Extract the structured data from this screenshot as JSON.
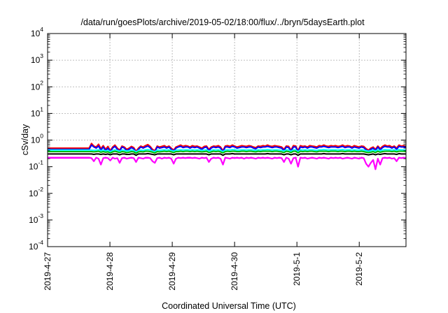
{
  "chart_data": {
    "type": "line",
    "title": "/data/run/goesPlots/archive/2019-05-02/18:00/flux/../bryn/5daysEarth.plot",
    "xlabel": "Coordinated Universal Time (UTC)",
    "ylabel": "cSv/day",
    "yscale": "log",
    "ylim": [
      0.0001,
      10000
    ],
    "xlim": [
      "2019-04-27 00:00",
      "2019-05-02 18:00"
    ],
    "grid": true,
    "legend": "none",
    "x_ticks": [
      "2019-4-27",
      "2019-4-28",
      "2019-4-29",
      "2019-4-30",
      "2019-5-1",
      "2019-5-2"
    ],
    "y_ticks": [
      {
        "base": "10",
        "exp": "-4"
      },
      {
        "base": "10",
        "exp": "-3"
      },
      {
        "base": "10",
        "exp": "-2"
      },
      {
        "base": "10",
        "exp": "-1"
      },
      {
        "base": "10",
        "exp": "0"
      },
      {
        "base": "10",
        "exp": "1"
      },
      {
        "base": "10",
        "exp": "2"
      },
      {
        "base": "10",
        "exp": "3"
      },
      {
        "base": "10",
        "exp": "4"
      }
    ],
    "data_start": "2019-04-27 16:00",
    "flat_value_before_start": true,
    "series": [
      {
        "color": "#ff00ff",
        "fill_to_zero": true,
        "values": [
          0.22,
          0.21,
          0.16,
          0.22,
          0.2,
          0.12,
          0.21,
          0.22,
          0.21,
          0.17,
          0.22,
          0.2,
          0.21,
          0.14,
          0.21,
          0.22,
          0.2,
          0.21,
          0.22,
          0.21,
          0.15,
          0.22,
          0.21,
          0.2,
          0.22,
          0.22,
          0.21,
          0.16,
          0.14,
          0.21,
          0.22,
          0.2,
          0.22,
          0.21,
          0.22,
          0.2,
          0.13,
          0.2,
          0.22,
          0.21,
          0.22,
          0.21,
          0.22,
          0.22,
          0.21,
          0.22,
          0.21,
          0.2,
          0.22,
          0.21,
          0.22,
          0.15,
          0.2,
          0.22,
          0.21,
          0.22,
          0.2,
          0.12,
          0.22,
          0.21,
          0.2,
          0.22,
          0.21,
          0.22,
          0.21,
          0.22,
          0.2,
          0.22,
          0.21,
          0.22,
          0.21,
          0.2,
          0.22,
          0.21,
          0.22,
          0.21,
          0.22,
          0.21,
          0.2,
          0.22,
          0.21,
          0.22,
          0.21,
          0.15,
          0.22,
          0.2,
          0.13,
          0.21,
          0.22,
          0.1,
          0.22,
          0.21,
          0.22,
          0.2,
          0.21,
          0.22,
          0.21,
          0.2,
          0.22,
          0.21,
          0.22,
          0.21,
          0.2,
          0.22,
          0.21,
          0.22,
          0.21,
          0.22,
          0.2,
          0.21,
          0.22,
          0.21,
          0.2,
          0.22,
          0.21,
          0.2,
          0.22,
          0.21,
          0.13,
          0.1,
          0.14,
          0.18,
          0.08,
          0.2,
          0.12,
          0.21,
          0.22,
          0.21,
          0.22,
          0.2,
          0.21,
          0.16,
          0.22,
          0.21,
          0.22,
          0.21
        ]
      },
      {
        "color": "#ff0000",
        "values": [
          0.5,
          0.75,
          0.6,
          0.55,
          0.7,
          0.48,
          0.62,
          0.45,
          0.58,
          0.4,
          0.55,
          0.65,
          0.5,
          0.42,
          0.6,
          0.55,
          0.45,
          0.5,
          0.58,
          0.52,
          0.38,
          0.5,
          0.6,
          0.55,
          0.62,
          0.68,
          0.58,
          0.45,
          0.4,
          0.6,
          0.55,
          0.58,
          0.62,
          0.55,
          0.6,
          0.5,
          0.42,
          0.55,
          0.6,
          0.65,
          0.58,
          0.62,
          0.6,
          0.55,
          0.62,
          0.58,
          0.6,
          0.55,
          0.5,
          0.58,
          0.6,
          0.45,
          0.55,
          0.6,
          0.58,
          0.62,
          0.55,
          0.4,
          0.6,
          0.62,
          0.58,
          0.65,
          0.6,
          0.55,
          0.58,
          0.62,
          0.6,
          0.58,
          0.62,
          0.6,
          0.55,
          0.52,
          0.6,
          0.58,
          0.62,
          0.6,
          0.65,
          0.6,
          0.58,
          0.62,
          0.6,
          0.58,
          0.55,
          0.45,
          0.6,
          0.58,
          0.42,
          0.62,
          0.6,
          0.4,
          0.62,
          0.58,
          0.6,
          0.55,
          0.62,
          0.6,
          0.58,
          0.55,
          0.62,
          0.6,
          0.65,
          0.6,
          0.58,
          0.62,
          0.6,
          0.62,
          0.58,
          0.6,
          0.65,
          0.58,
          0.62,
          0.6,
          0.55,
          0.62,
          0.58,
          0.55,
          0.6,
          0.58,
          0.48,
          0.42,
          0.5,
          0.55,
          0.45,
          0.6,
          0.48,
          0.58,
          0.65,
          0.6,
          0.62,
          0.55,
          0.6,
          0.5,
          0.65,
          0.6,
          0.62,
          0.58
        ]
      },
      {
        "color": "#0000ff",
        "values": [
          0.45,
          0.65,
          0.55,
          0.5,
          0.6,
          0.42,
          0.55,
          0.4,
          0.5,
          0.36,
          0.5,
          0.58,
          0.45,
          0.38,
          0.55,
          0.5,
          0.4,
          0.45,
          0.52,
          0.47,
          0.34,
          0.45,
          0.55,
          0.5,
          0.55,
          0.6,
          0.52,
          0.4,
          0.36,
          0.55,
          0.5,
          0.52,
          0.55,
          0.5,
          0.55,
          0.45,
          0.38,
          0.5,
          0.55,
          0.58,
          0.52,
          0.55,
          0.55,
          0.5,
          0.55,
          0.52,
          0.55,
          0.5,
          0.45,
          0.52,
          0.55,
          0.4,
          0.5,
          0.55,
          0.52,
          0.55,
          0.5,
          0.36,
          0.55,
          0.55,
          0.52,
          0.58,
          0.55,
          0.5,
          0.52,
          0.55,
          0.55,
          0.52,
          0.55,
          0.55,
          0.5,
          0.47,
          0.55,
          0.52,
          0.55,
          0.55,
          0.58,
          0.55,
          0.52,
          0.55,
          0.55,
          0.52,
          0.5,
          0.4,
          0.55,
          0.52,
          0.38,
          0.55,
          0.55,
          0.36,
          0.55,
          0.52,
          0.55,
          0.5,
          0.55,
          0.55,
          0.52,
          0.5,
          0.55,
          0.55,
          0.58,
          0.55,
          0.52,
          0.55,
          0.55,
          0.55,
          0.52,
          0.55,
          0.58,
          0.52,
          0.55,
          0.55,
          0.5,
          0.55,
          0.52,
          0.5,
          0.55,
          0.52,
          0.43,
          0.38,
          0.45,
          0.5,
          0.4,
          0.55,
          0.43,
          0.52,
          0.58,
          0.55,
          0.55,
          0.5,
          0.55,
          0.45,
          0.58,
          0.55,
          0.55,
          0.52
        ]
      },
      {
        "color": "#00ffff",
        "values": [
          0.42,
          0.42,
          0.41,
          0.42,
          0.43,
          0.4,
          0.42,
          0.39,
          0.41,
          0.37,
          0.41,
          0.43,
          0.41,
          0.38,
          0.42,
          0.41,
          0.39,
          0.4,
          0.42,
          0.41,
          0.36,
          0.41,
          0.42,
          0.41,
          0.43,
          0.44,
          0.42,
          0.39,
          0.37,
          0.42,
          0.41,
          0.42,
          0.43,
          0.42,
          0.43,
          0.41,
          0.38,
          0.42,
          0.42,
          0.43,
          0.42,
          0.43,
          0.43,
          0.42,
          0.43,
          0.42,
          0.43,
          0.42,
          0.41,
          0.42,
          0.43,
          0.39,
          0.41,
          0.43,
          0.42,
          0.43,
          0.41,
          0.37,
          0.42,
          0.43,
          0.42,
          0.44,
          0.43,
          0.42,
          0.42,
          0.43,
          0.43,
          0.42,
          0.43,
          0.43,
          0.42,
          0.41,
          0.43,
          0.42,
          0.43,
          0.43,
          0.44,
          0.43,
          0.42,
          0.43,
          0.43,
          0.42,
          0.41,
          0.39,
          0.43,
          0.42,
          0.38,
          0.43,
          0.43,
          0.37,
          0.43,
          0.42,
          0.43,
          0.42,
          0.43,
          0.43,
          0.42,
          0.41,
          0.43,
          0.43,
          0.44,
          0.43,
          0.42,
          0.43,
          0.43,
          0.43,
          0.42,
          0.43,
          0.44,
          0.42,
          0.43,
          0.43,
          0.42,
          0.43,
          0.42,
          0.42,
          0.43,
          0.42,
          0.4,
          0.38,
          0.4,
          0.42,
          0.39,
          0.43,
          0.4,
          0.42,
          0.44,
          0.43,
          0.43,
          0.42,
          0.43,
          0.41,
          0.44,
          0.43,
          0.43,
          0.42
        ]
      },
      {
        "color": "#00bb00",
        "values": [
          0.37,
          0.37,
          0.36,
          0.37,
          0.38,
          0.35,
          0.37,
          0.35,
          0.36,
          0.33,
          0.36,
          0.38,
          0.36,
          0.34,
          0.37,
          0.36,
          0.34,
          0.35,
          0.37,
          0.36,
          0.32,
          0.36,
          0.37,
          0.36,
          0.38,
          0.38,
          0.37,
          0.35,
          0.33,
          0.37,
          0.36,
          0.37,
          0.38,
          0.37,
          0.38,
          0.36,
          0.34,
          0.37,
          0.37,
          0.38,
          0.37,
          0.38,
          0.38,
          0.37,
          0.38,
          0.37,
          0.38,
          0.37,
          0.36,
          0.37,
          0.38,
          0.34,
          0.36,
          0.38,
          0.37,
          0.38,
          0.36,
          0.33,
          0.37,
          0.38,
          0.37,
          0.38,
          0.38,
          0.37,
          0.37,
          0.38,
          0.38,
          0.37,
          0.38,
          0.38,
          0.37,
          0.36,
          0.38,
          0.37,
          0.38,
          0.38,
          0.38,
          0.38,
          0.37,
          0.38,
          0.38,
          0.37,
          0.36,
          0.34,
          0.38,
          0.37,
          0.34,
          0.38,
          0.38,
          0.33,
          0.38,
          0.37,
          0.38,
          0.37,
          0.38,
          0.38,
          0.37,
          0.36,
          0.38,
          0.38,
          0.38,
          0.38,
          0.37,
          0.38,
          0.38,
          0.38,
          0.37,
          0.38,
          0.38,
          0.37,
          0.38,
          0.38,
          0.37,
          0.38,
          0.37,
          0.37,
          0.38,
          0.37,
          0.35,
          0.34,
          0.35,
          0.37,
          0.34,
          0.38,
          0.35,
          0.37,
          0.38,
          0.38,
          0.38,
          0.37,
          0.38,
          0.36,
          0.38,
          0.38,
          0.38,
          0.37
        ]
      },
      {
        "color": "#000000",
        "values": [
          0.3,
          0.3,
          0.29,
          0.3,
          0.3,
          0.29,
          0.3,
          0.29,
          0.3,
          0.28,
          0.3,
          0.3,
          0.3,
          0.28,
          0.3,
          0.3,
          0.29,
          0.29,
          0.3,
          0.3,
          0.27,
          0.3,
          0.3,
          0.3,
          0.3,
          0.31,
          0.3,
          0.29,
          0.28,
          0.3,
          0.3,
          0.3,
          0.3,
          0.3,
          0.3,
          0.3,
          0.28,
          0.3,
          0.3,
          0.3,
          0.3,
          0.3,
          0.3,
          0.3,
          0.3,
          0.3,
          0.3,
          0.3,
          0.3,
          0.3,
          0.3,
          0.28,
          0.3,
          0.3,
          0.3,
          0.3,
          0.3,
          0.27,
          0.3,
          0.3,
          0.3,
          0.31,
          0.3,
          0.3,
          0.3,
          0.3,
          0.3,
          0.3,
          0.3,
          0.3,
          0.3,
          0.3,
          0.3,
          0.3,
          0.3,
          0.3,
          0.31,
          0.3,
          0.3,
          0.3,
          0.3,
          0.3,
          0.3,
          0.28,
          0.3,
          0.3,
          0.28,
          0.3,
          0.3,
          0.27,
          0.3,
          0.3,
          0.3,
          0.3,
          0.3,
          0.3,
          0.3,
          0.3,
          0.3,
          0.3,
          0.31,
          0.3,
          0.3,
          0.3,
          0.3,
          0.3,
          0.3,
          0.3,
          0.31,
          0.3,
          0.3,
          0.3,
          0.3,
          0.3,
          0.3,
          0.3,
          0.3,
          0.3,
          0.29,
          0.28,
          0.29,
          0.3,
          0.28,
          0.3,
          0.29,
          0.3,
          0.31,
          0.3,
          0.3,
          0.3,
          0.3,
          0.29,
          0.31,
          0.3,
          0.3,
          0.3
        ]
      }
    ]
  }
}
